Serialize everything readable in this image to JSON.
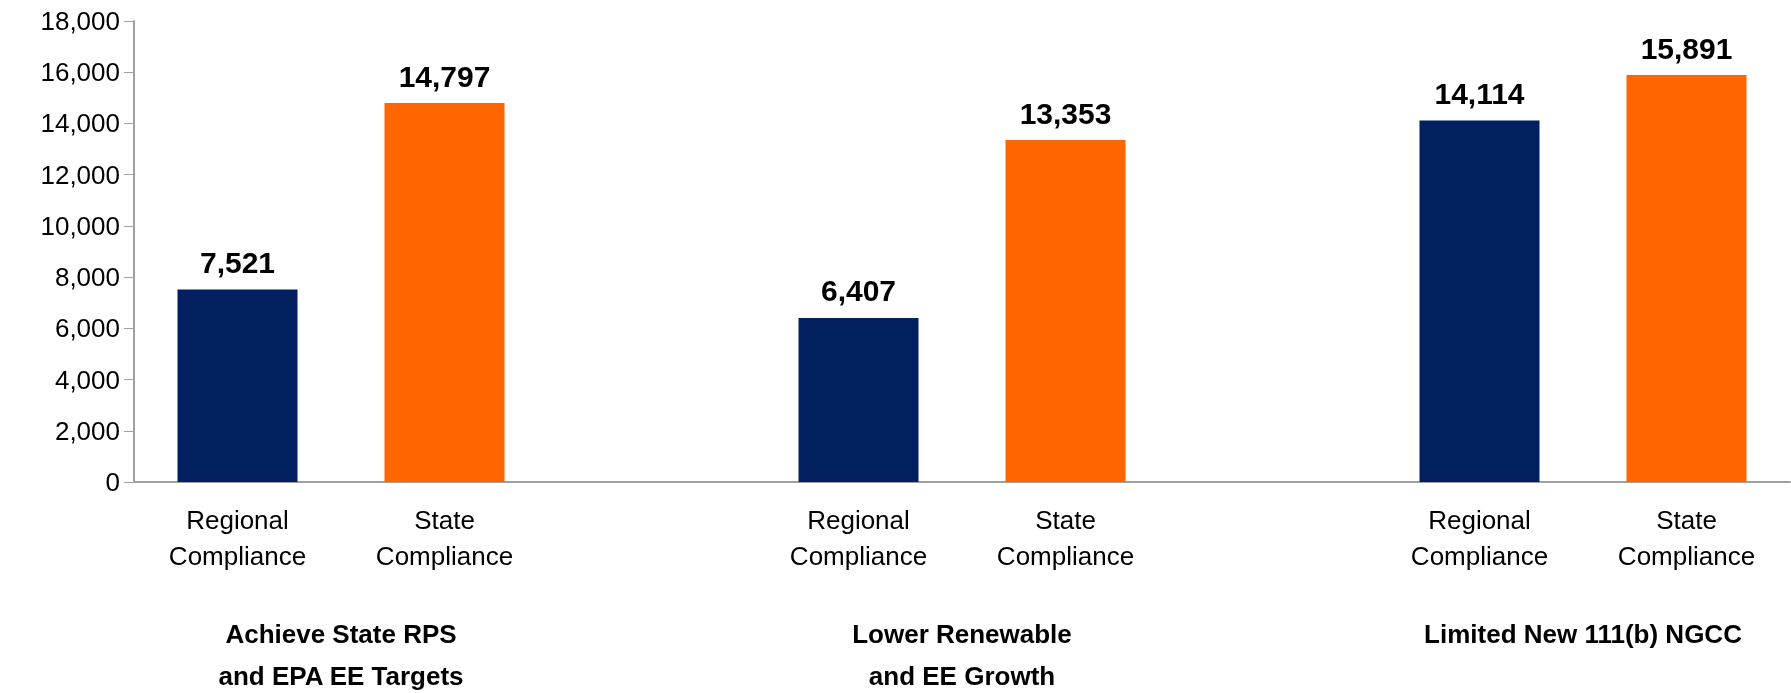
{
  "chart_data": {
    "type": "bar",
    "categories": [
      "Regional Compliance",
      "State Compliance",
      null,
      "Regional Compliance",
      "State Compliance",
      null,
      "Regional Compliance",
      "State Compliance"
    ],
    "values": [
      7521,
      14797,
      null,
      6407,
      13353,
      null,
      14114,
      15891
    ],
    "value_labels": [
      "7,521",
      "14,797",
      null,
      "6,407",
      "13,353",
      null,
      "14,114",
      "15,891"
    ],
    "colors": [
      "#021f5e",
      "#ff6600",
      null,
      "#021f5e",
      "#ff6600",
      null,
      "#021f5e",
      "#ff6600"
    ],
    "ylim": [
      0,
      18000
    ],
    "yticks": [
      0,
      {
        "value": 2000,
        "label": "2,000"
      },
      {
        "value": 4000,
        "label": "4,000"
      },
      {
        "value": 6000,
        "label": "6,000"
      },
      {
        "value": 8000,
        "label": "8,000"
      },
      {
        "value": 10000,
        "label": "10,000"
      },
      {
        "value": 12000,
        "label": "12,000"
      },
      {
        "value": 14000,
        "label": "14,000"
      },
      {
        "value": 16000,
        "label": "16,000"
      },
      {
        "value": 18000,
        "label": "18,000"
      }
    ],
    "grid": false,
    "annotations": [
      "Achieve State RPS\nand EPA EE Targets",
      "Lower Renewable\nand EE Growth",
      "Limited New 111(b) NGCC"
    ]
  }
}
